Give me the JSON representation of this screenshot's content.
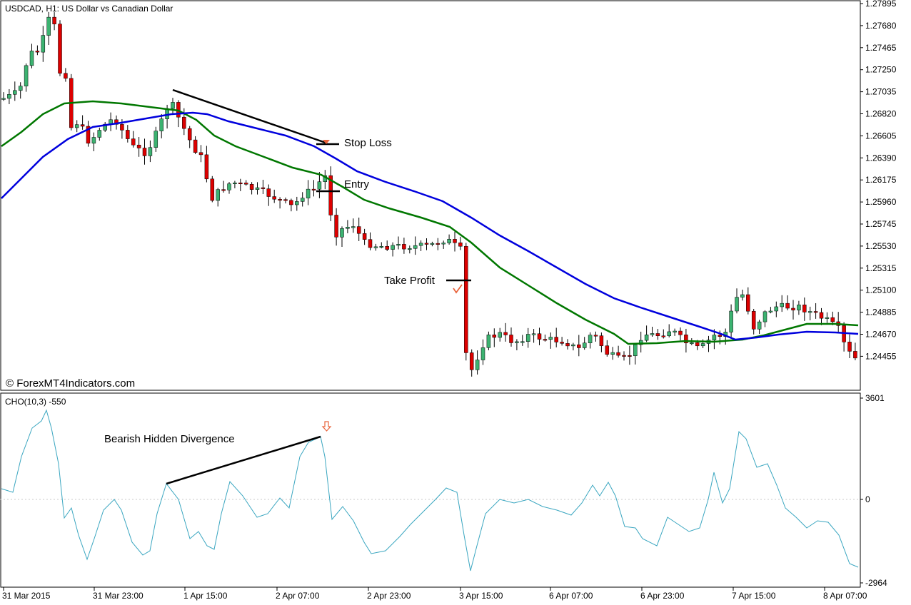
{
  "header": {
    "symbol_title": "USDCAD, H1:  US Dollar vs Canadian Dollar",
    "copyright": "© ForexMT4Indicators.com",
    "indicator_title": "CHO(10,3) -550"
  },
  "annotations": {
    "stop_loss": "Stop Loss",
    "entry": "Entry",
    "take_profit": "Take Profit",
    "divergence": "Bearish Hidden Divergence"
  },
  "colors": {
    "bull": "#3cb371",
    "bear": "#dd0000",
    "ma_fast": "#0000dd",
    "ma_slow": "#007700",
    "osc": "#3aa6c0",
    "arrow": "#e8643c"
  },
  "chart_data": [
    {
      "type": "candlestick",
      "title": "USDCAD, H1:  US Dollar vs Canadian Dollar",
      "x_tick_labels": [
        "31 Mar 2015",
        "31 Mar 23:00",
        "1 Apr 15:00",
        "2 Apr 07:00",
        "2 Apr 23:00",
        "3 Apr 15:00",
        "6 Apr 07:00",
        "6 Apr 23:00",
        "7 Apr 15:00",
        "8 Apr 07:00"
      ],
      "y_tick_labels": [
        "1.27895",
        "1.27680",
        "1.27465",
        "1.27250",
        "1.27035",
        "1.26820",
        "1.26605",
        "1.26390",
        "1.26175",
        "1.25960",
        "1.25745",
        "1.25530",
        "1.25315",
        "1.25100",
        "1.24885",
        "1.24670",
        "1.24455"
      ],
      "ylim": [
        1.2433,
        1.2792
      ],
      "series": [
        {
          "name": "",
          "kind": "moving-average",
          "color": "blue"
        },
        {
          "name": "",
          "kind": "moving-average",
          "color": "green"
        }
      ],
      "levels": {
        "stop_loss": 1.2659,
        "entry": 1.2617,
        "take_profit": 1.2529
      }
    },
    {
      "type": "line",
      "title": "CHO(10,3) -550",
      "y_tick_labels": [
        "3601",
        "0",
        "-2964"
      ],
      "ylim": [
        -2964,
        3601
      ],
      "series": [
        {
          "name": "CHO(10,3)"
        }
      ]
    }
  ]
}
